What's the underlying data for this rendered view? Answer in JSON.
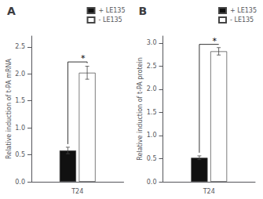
{
  "chart_data": [
    {
      "type": "bar",
      "title": "A",
      "categories": [
        "T24"
      ],
      "series": [
        {
          "name": "+ LE135",
          "color": "#111111",
          "values": [
            0.58
          ],
          "errors": [
            0.06
          ]
        },
        {
          "name": "- LE135",
          "color": "#ffffff",
          "values": [
            2.02
          ],
          "errors": [
            0.12
          ]
        }
      ],
      "ylabel": "Relative induction of t-PA mRNA",
      "ylim": [
        0,
        2.7
      ],
      "yticks": [
        {
          "value": 0,
          "label": "0.0"
        },
        0.5,
        {
          "value": 1.0,
          "label": "1.0"
        },
        1.5,
        {
          "value": 2.0,
          "label": "2.0"
        },
        2.5
      ],
      "annotations": [
        {
          "text": "*",
          "y": 2.22
        }
      ],
      "legend": "upper right",
      "grid": false
    },
    {
      "type": "bar",
      "title": "B",
      "categories": [
        "T24"
      ],
      "series": [
        {
          "name": "+ LE135",
          "color": "#111111",
          "values": [
            0.52
          ],
          "errors": [
            0.04
          ]
        },
        {
          "name": "- LE135",
          "color": "#ffffff",
          "values": [
            2.82
          ],
          "errors": [
            0.08
          ]
        }
      ],
      "ylabel": "Relative induction of t-PA protein",
      "ylim": [
        0,
        3.15
      ],
      "yticks": [
        {
          "value": 0,
          "label": "0.0"
        },
        0.5,
        {
          "value": 1.0,
          "label": "1.0"
        },
        1.5,
        {
          "value": 2.0,
          "label": "2.0"
        },
        2.5,
        {
          "value": 3.0,
          "label": "3.0"
        }
      ],
      "annotations": [
        {
          "text": "*",
          "y": 2.97
        }
      ],
      "legend": "upper right",
      "grid": false
    }
  ]
}
